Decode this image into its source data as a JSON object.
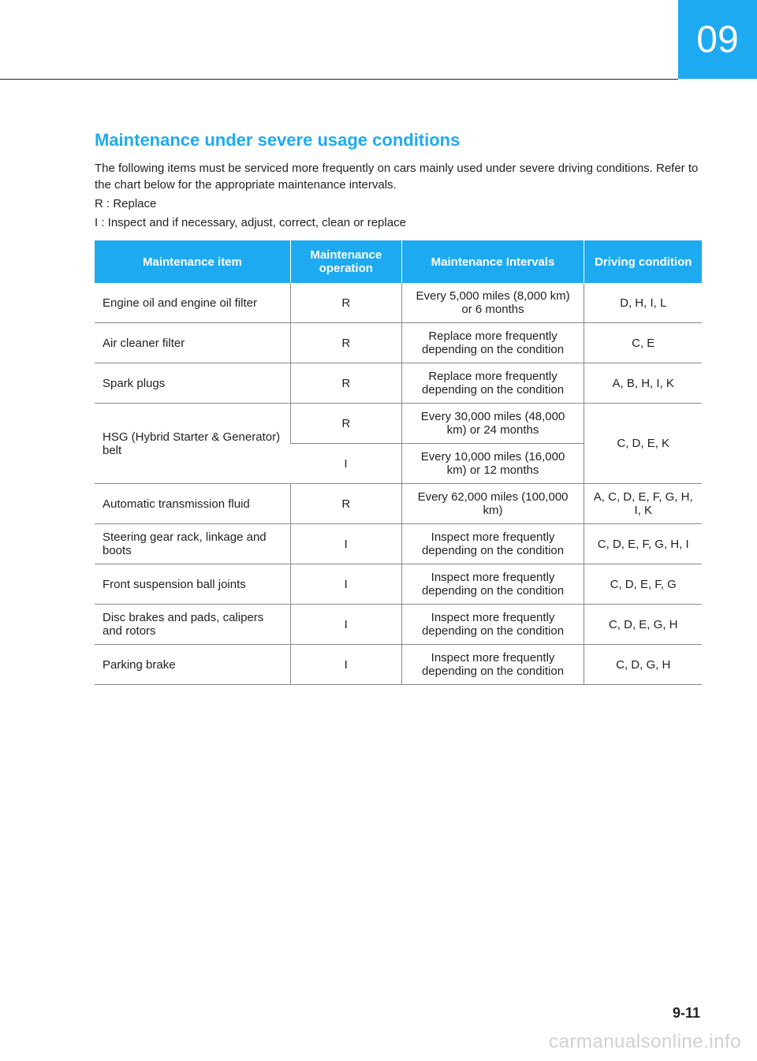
{
  "chapter": {
    "number": "09",
    "badge_bg": "#1eaaf1",
    "badge_text_color": "#ffffff"
  },
  "section": {
    "title": "Maintenance under severe usage conditions",
    "title_color": "#1eaaf1",
    "intro": "The following items must be serviced more frequently on cars mainly used under severe driving conditions. Refer to the chart below for the appropriate maintenance intervals.",
    "legend_r": "R : Replace",
    "legend_i": "I : Inspect and if necessary, adjust, correct, clean or replace"
  },
  "table": {
    "header_bg": "#1eaaf1",
    "header_text_color": "#ffffff",
    "border_color": "#888888",
    "columns": [
      "Maintenance item",
      "Maintenance operation",
      "Maintenance Intervals",
      "Driving condition"
    ],
    "rows": [
      {
        "item": "Engine oil and engine oil filter",
        "op": "R",
        "interval": "Every 5,000 miles (8,000 km) or 6 months",
        "cond": "D, H, I, L"
      },
      {
        "item": "Air cleaner filter",
        "op": "R",
        "interval": "Replace more frequently depending on the condition",
        "cond": "C, E"
      },
      {
        "item": "Spark plugs",
        "op": "R",
        "interval": "Replace more frequently depending on the condition",
        "cond": "A, B, H, I, K"
      },
      {
        "item": "HSG (Hybrid Starter & Generator) belt",
        "sub": [
          {
            "op": "R",
            "interval": "Every 30,000 miles (48,000 km) or 24 months"
          },
          {
            "op": "I",
            "interval": "Every 10,000 miles (16,000 km) or 12 months"
          }
        ],
        "cond": "C, D, E, K"
      },
      {
        "item": "Automatic transmission fluid",
        "op": "R",
        "interval": "Every 62,000 miles (100,000 km)",
        "cond": "A, C, D, E, F, G, H, I, K"
      },
      {
        "item": "Steering gear rack, linkage and boots",
        "op": "I",
        "interval": "Inspect more frequently depending on the condition",
        "cond": "C, D, E, F, G, H, I"
      },
      {
        "item": "Front suspension ball joints",
        "op": "I",
        "interval": "Inspect more frequently depending on the condition",
        "cond": "C, D, E, F, G"
      },
      {
        "item": "Disc brakes and pads, calipers and rotors",
        "op": "I",
        "interval": "Inspect more frequently depending on the condition",
        "cond": "C, D, E, G, H"
      },
      {
        "item": "Parking brake",
        "op": "I",
        "interval": "Inspect more frequently depending on the condition",
        "cond": "C, D, G, H"
      }
    ]
  },
  "page_number": "9-11",
  "watermark": "carmanualsonline.info"
}
